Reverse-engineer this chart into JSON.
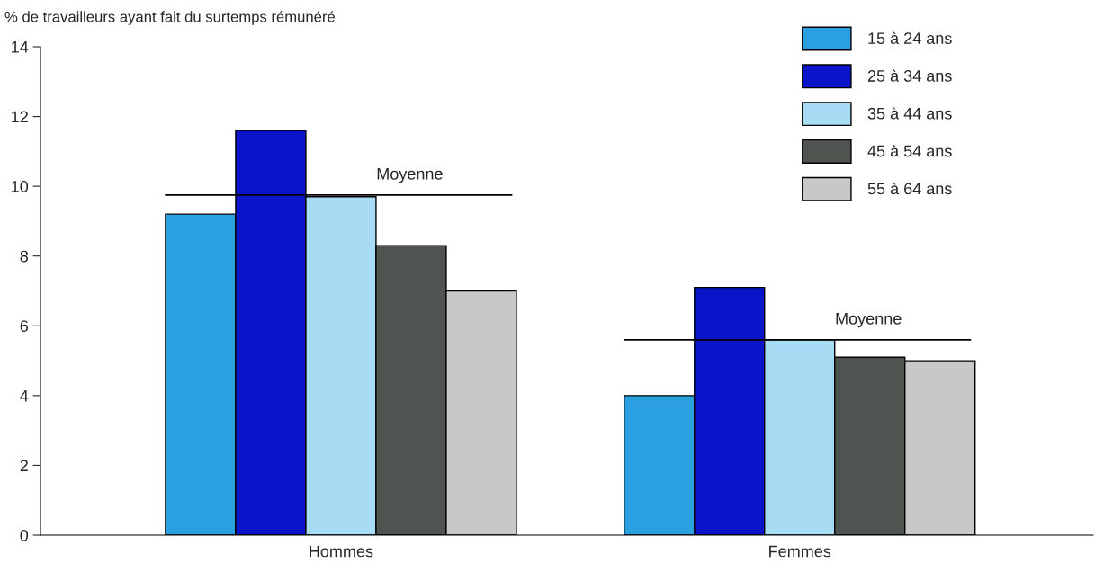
{
  "chart_data": {
    "type": "bar",
    "ylabel": "% de travailleurs ayant fait du surtemps rémunéré",
    "categories": [
      "Hommes",
      "Femmes"
    ],
    "series": [
      {
        "name": "15 à 24 ans",
        "color": "#2aa0e0",
        "values": [
          9.2,
          4.0
        ]
      },
      {
        "name": "25 à 34 ans",
        "color": "#0a14c8",
        "values": [
          11.6,
          7.1
        ]
      },
      {
        "name": "35 à 44 ans",
        "color": "#a8dcf4",
        "values": [
          9.7,
          5.6
        ]
      },
      {
        "name": "45 à 54 ans",
        "color": "#505450",
        "values": [
          8.3,
          5.1
        ]
      },
      {
        "name": "55 à 64 ans",
        "color": "#c8c8c8",
        "values": [
          7.0,
          5.0
        ]
      }
    ],
    "ref_lines": [
      {
        "axis": "y",
        "value": 9.75,
        "label": "Moyenne",
        "color": "#000000"
      },
      {
        "axis": "y",
        "value": 5.6,
        "label": "Moyenne",
        "color": "#000000"
      }
    ],
    "ylim": [
      0,
      14
    ],
    "yticks": [
      0,
      2,
      4,
      6,
      8,
      10,
      12,
      14
    ],
    "legend": "top right",
    "grid": false
  }
}
